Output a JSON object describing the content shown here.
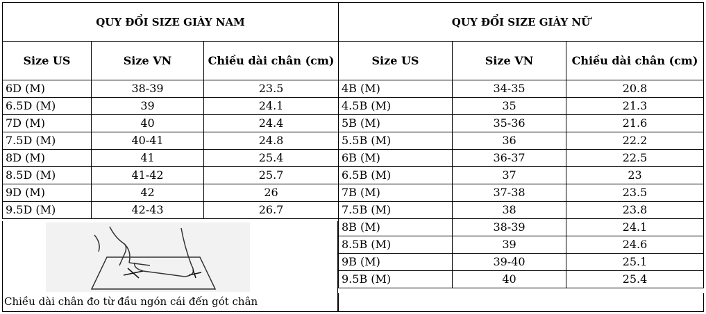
{
  "men": {
    "title": "QUY ĐỔI SIZE GIÀY NAM",
    "headers": [
      "Size US",
      "Size VN",
      "Chiều dài chân (cm)"
    ],
    "rows": [
      [
        "6D (M)",
        "38-39",
        "23.5"
      ],
      [
        "6.5D (M)",
        "39",
        "24.1"
      ],
      [
        "7D (M)",
        "40",
        "24.4"
      ],
      [
        "7.5D (M)",
        "40-41",
        "24.8"
      ],
      [
        "8D (M)",
        "41",
        "25.4"
      ],
      [
        "8.5D (M)",
        "41-42",
        "25.7"
      ],
      [
        "9D (M)",
        "42",
        "26"
      ],
      [
        "9.5D (M)",
        "42-43",
        "26.7"
      ]
    ],
    "caption": "Chiều dài chân đo từ đầu ngón cái đến gót chân"
  },
  "women": {
    "title": "QUY ĐỔI SIZE GIÀY NỮ",
    "headers": [
      "Size US",
      "Size VN",
      "Chiều dài chân (cm)"
    ],
    "rows": [
      [
        "4B (M)",
        "34-35",
        "20.8"
      ],
      [
        "4.5B (M)",
        "35",
        "21.3"
      ],
      [
        "5B (M)",
        "35-36",
        "21.6"
      ],
      [
        "5.5B (M)",
        "36",
        "22.2"
      ],
      [
        "6B (M)",
        "36-37",
        "22.5"
      ],
      [
        "6.5B (M)",
        "37",
        "23"
      ],
      [
        "7B (M)",
        "37-38",
        "23.5"
      ],
      [
        "7.5B (M)",
        "38",
        "23.8"
      ],
      [
        "8B (M)",
        "38-39",
        "24.1"
      ],
      [
        "8.5B (M)",
        "39",
        "24.6"
      ],
      [
        "9B (M)",
        "39-40",
        "25.1"
      ],
      [
        "9.5B (M)",
        "40",
        "25.4"
      ]
    ]
  }
}
